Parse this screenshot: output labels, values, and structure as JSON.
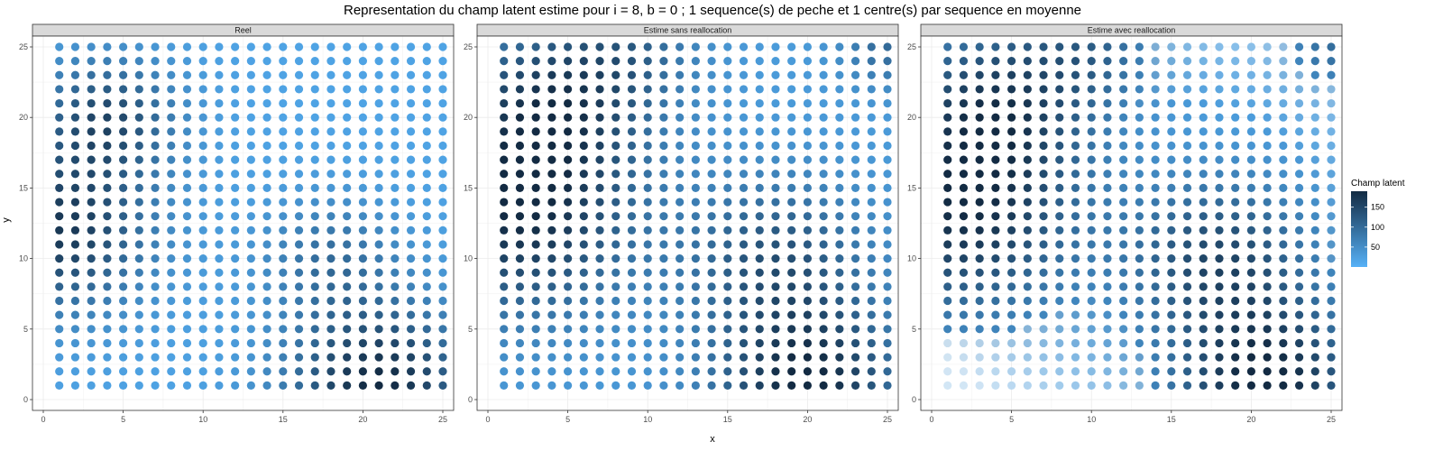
{
  "chart_data": {
    "type": "scatter",
    "title": "Representation du champ latent estime pour i = 8, b = 0 ; 1 sequence(s) de peche et 1 centre(s) par sequence en moyenne",
    "xlabel": "x",
    "ylabel": "y",
    "xlim": [
      0,
      25
    ],
    "ylim": [
      0,
      25
    ],
    "x_ticks": [
      0,
      5,
      10,
      15,
      20,
      25
    ],
    "y_ticks": [
      0,
      5,
      10,
      15,
      20,
      25
    ],
    "grid": true,
    "panels": [
      {
        "name": "Reel",
        "hotspots": [
          {
            "x": 1,
            "y": 12,
            "amp": 150,
            "s": 4
          },
          {
            "x": 4,
            "y": 20,
            "amp": 120,
            "s": 3
          },
          {
            "x": 21,
            "y": 1,
            "amp": 170,
            "s": 4
          },
          {
            "x": 18,
            "y": 10,
            "amp": 70,
            "s": 3
          }
        ],
        "base": 20,
        "edge_fade": 0
      },
      {
        "name": "Estime sans reallocation",
        "hotspots": [
          {
            "x": 2,
            "y": 13,
            "amp": 150,
            "s": 5
          },
          {
            "x": 4,
            "y": 21,
            "amp": 120,
            "s": 4
          },
          {
            "x": 20,
            "y": 1,
            "amp": 160,
            "s": 4
          },
          {
            "x": 18,
            "y": 10,
            "amp": 100,
            "s": 4
          },
          {
            "x": 9,
            "y": 25,
            "amp": 60,
            "s": 3
          },
          {
            "x": 25,
            "y": 25,
            "amp": 70,
            "s": 2
          }
        ],
        "base": 30,
        "edge_fade": 0
      },
      {
        "name": "Estime avec reallocation",
        "hotspots": [
          {
            "x": 2,
            "y": 13,
            "amp": 150,
            "s": 5
          },
          {
            "x": 4,
            "y": 21,
            "amp": 120,
            "s": 4
          },
          {
            "x": 21,
            "y": 1,
            "amp": 170,
            "s": 4
          },
          {
            "x": 18,
            "y": 10,
            "amp": 120,
            "s": 4
          },
          {
            "x": 10,
            "y": 25,
            "amp": 70,
            "s": 3
          },
          {
            "x": 25,
            "y": 25,
            "amp": 70,
            "s": 2
          }
        ],
        "base": 25,
        "edge_fade": 25
      }
    ],
    "legend": {
      "title": "Champ latent",
      "breaks": [
        50,
        100,
        150
      ],
      "range": [
        0,
        190
      ],
      "low_color": "#56B1F7",
      "high_color": "#132B43",
      "position": "right"
    },
    "colors": {
      "strip_bg": "#D9D9D9",
      "panel_border": "#333333",
      "grid": "#EBEBEB"
    }
  }
}
